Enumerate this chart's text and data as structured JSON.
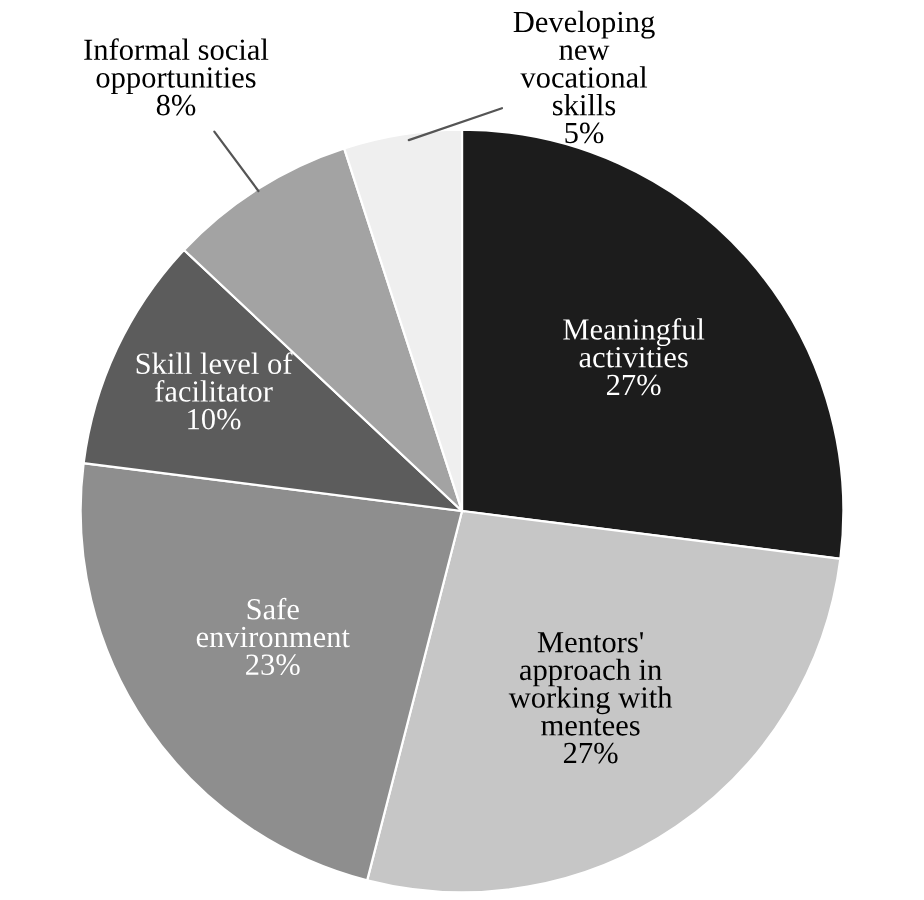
{
  "chart_data": {
    "type": "pie",
    "categories": [
      "Meaningful\nactivities",
      "Mentors'\napproach in\nworking with\nmentees",
      "Safe\nenvironment",
      "Skill level of\nfacilitator",
      "Informal social\nopportunities",
      "Developing\nnew\nvocational\nskills"
    ],
    "values": [
      27,
      27,
      23,
      10,
      8,
      5
    ],
    "colors": [
      "#1c1c1c",
      "#c6c6c6",
      "#8e8e8e",
      "#5c5c5c",
      "#a3a3a3",
      "#efefef"
    ],
    "value_labels": [
      "27%",
      "27%",
      "23%",
      "10%",
      "8%",
      "5%"
    ]
  }
}
